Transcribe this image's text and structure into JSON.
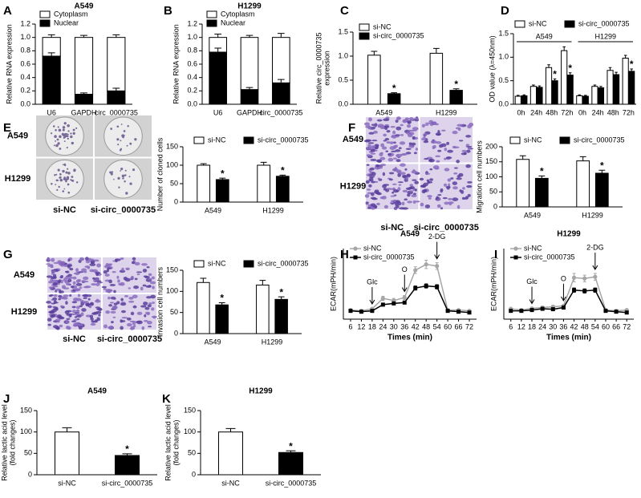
{
  "chart_data": [
    {
      "panel": "A",
      "type": "bar",
      "stacked": true,
      "title": "A549",
      "ylabel": "Relative RNA expression",
      "categories": [
        "U6",
        "GAPDH",
        "circ_0000735"
      ],
      "series": [
        {
          "name": "Cytoplasm",
          "color": "#ffffff",
          "values": [
            0.28,
            0.85,
            0.8
          ],
          "errors": [
            0.04,
            0.03,
            0.04
          ]
        },
        {
          "name": "Nuclear",
          "color": "#000000",
          "values": [
            0.72,
            0.15,
            0.2
          ],
          "errors": [
            0.05,
            0.02,
            0.04
          ]
        }
      ],
      "ylim": [
        0,
        1.2
      ],
      "yticks": [
        {
          "value": 0,
          "label": "0.0"
        },
        0.2,
        0.4,
        0.6,
        0.8,
        {
          "value": 1,
          "label": "1.0"
        },
        1.2
      ],
      "legend": "top-left"
    },
    {
      "panel": "B",
      "type": "bar",
      "stacked": true,
      "title": "H1299",
      "ylabel": "Relative RNA expression",
      "categories": [
        "U6",
        "GAPDH",
        "circ_0000735"
      ],
      "series": [
        {
          "name": "Cytoplasm",
          "color": "#ffffff",
          "values": [
            0.22,
            0.78,
            0.68
          ],
          "errors": [
            0.05,
            0.03,
            0.06
          ]
        },
        {
          "name": "Nuclear",
          "color": "#000000",
          "values": [
            0.78,
            0.22,
            0.32
          ],
          "errors": [
            0.06,
            0.03,
            0.05
          ]
        }
      ],
      "ylim": [
        0,
        1.2
      ],
      "yticks": [
        {
          "value": 0,
          "label": "0.0"
        },
        0.2,
        0.4,
        0.6,
        0.8,
        {
          "value": 1,
          "label": "1.0"
        },
        1.2
      ],
      "legend": "top-left"
    },
    {
      "panel": "C",
      "type": "bar",
      "ylabel": [
        "Relative circ_0000735",
        "expression"
      ],
      "categories": [
        "A549",
        "H1299"
      ],
      "series": [
        {
          "name": "si-NC",
          "color": "#ffffff",
          "values": [
            1.02,
            1.06
          ],
          "errors": [
            0.08,
            0.1
          ]
        },
        {
          "name": "si-circ_0000735",
          "color": "#000000",
          "values": [
            0.22,
            0.29
          ],
          "errors": [
            0.02,
            0.03
          ],
          "sig": [
            "*",
            "*"
          ]
        }
      ],
      "ylim": [
        0,
        1.5
      ],
      "yticks": [
        {
          "value": 0,
          "label": "0.0"
        },
        0.5,
        {
          "value": 1,
          "label": "1.0"
        },
        1.5
      ],
      "legend": "top-left"
    },
    {
      "panel": "D",
      "type": "bar",
      "ylabel": "OD value (λ=450nm)",
      "categories": [
        "0h",
        "24h",
        "48h",
        "72h",
        "0h",
        "24h",
        "48h",
        "72h"
      ],
      "group_labels": [
        "A549",
        "H1299"
      ],
      "series": [
        {
          "name": "si-NC",
          "color": "#ffffff",
          "values": [
            0.17,
            0.38,
            0.78,
            1.14,
            0.18,
            0.38,
            0.72,
            0.98
          ],
          "errors": [
            0.02,
            0.03,
            0.06,
            0.08,
            0.02,
            0.03,
            0.06,
            0.06
          ]
        },
        {
          "name": "si-circ_0000735",
          "color": "#000000",
          "values": [
            0.18,
            0.36,
            0.5,
            0.62,
            0.17,
            0.35,
            0.63,
            0.7
          ],
          "errors": [
            0.02,
            0.03,
            0.04,
            0.05,
            0.02,
            0.03,
            0.05,
            0.05
          ],
          "sig": [
            null,
            null,
            "*",
            "*",
            null,
            null,
            null,
            "*"
          ]
        }
      ],
      "ylim": [
        0,
        1.5
      ],
      "yticks": [
        {
          "value": 0,
          "label": "0.0"
        },
        0.5,
        {
          "value": 1,
          "label": "1.0"
        },
        1.5
      ],
      "legend": "top"
    },
    {
      "panel": "E",
      "type": "bar",
      "ylabel": "Number of cloned cells",
      "photo_rows": [
        "A549",
        "H1299"
      ],
      "photo_cols": [
        "si-NC",
        "si-circ_0000735"
      ],
      "categories": [
        "A549",
        "H1299"
      ],
      "series": [
        {
          "name": "si-NC",
          "color": "#ffffff",
          "values": [
            100,
            100
          ],
          "errors": [
            4,
            8
          ]
        },
        {
          "name": "si-circ_0000735",
          "color": "#000000",
          "values": [
            61,
            70
          ],
          "errors": [
            4,
            3
          ],
          "sig": [
            "*",
            "*"
          ]
        }
      ],
      "ylim": [
        0,
        150
      ],
      "yticks": [
        0,
        50,
        100,
        150
      ],
      "legend": "top"
    },
    {
      "panel": "F",
      "type": "bar",
      "ylabel": "Migration cell numbers",
      "photo_rows": [
        "A549",
        "H1299"
      ],
      "photo_cols": [
        "si-NC",
        "si-circ_0000735"
      ],
      "categories": [
        "A549",
        "H1299"
      ],
      "series": [
        {
          "name": "si-NC",
          "color": "#ffffff",
          "values": [
            158,
            153
          ],
          "errors": [
            12,
            14
          ]
        },
        {
          "name": "si-circ_0000735",
          "color": "#000000",
          "values": [
            95,
            112
          ],
          "errors": [
            8,
            10
          ],
          "sig": [
            "*",
            "*"
          ]
        }
      ],
      "ylim": [
        0,
        200
      ],
      "yticks": [
        0,
        50,
        100,
        150,
        200
      ],
      "legend": "top"
    },
    {
      "panel": "G",
      "type": "bar",
      "ylabel": "Invasion cell numbers",
      "photo_rows": [
        "A549",
        "H1299"
      ],
      "photo_cols": [
        "si-NC",
        "si-circ_0000735"
      ],
      "categories": [
        "A549",
        "H1299"
      ],
      "series": [
        {
          "name": "si-NC",
          "color": "#ffffff",
          "values": [
            121,
            115
          ],
          "errors": [
            10,
            11
          ]
        },
        {
          "name": "si-circ_0000735",
          "color": "#000000",
          "values": [
            68,
            81
          ],
          "errors": [
            5,
            6
          ],
          "sig": [
            "*",
            "*"
          ]
        }
      ],
      "ylim": [
        0,
        150
      ],
      "yticks": [
        0,
        50,
        100,
        150
      ],
      "legend": "top"
    },
    {
      "panel": "H",
      "type": "line",
      "title": "A549",
      "ylabel": "ECAR(mPH/min)",
      "xlabel": "Times (min)",
      "x": [
        6,
        12,
        18,
        24,
        30,
        36,
        42,
        48,
        54,
        60,
        66,
        72
      ],
      "series": [
        {
          "name": "si-NC",
          "color": "#a6a6a6",
          "marker": "circle",
          "values": [
            22,
            20,
            25,
            50,
            45,
            52,
            118,
            132,
            128,
            22,
            22,
            20
          ],
          "errors": [
            2,
            2,
            2,
            5,
            5,
            5,
            8,
            10,
            8,
            2,
            2,
            2
          ]
        },
        {
          "name": "si-circ_0000735",
          "color": "#000000",
          "marker": "square",
          "values": [
            20,
            18,
            20,
            35,
            38,
            40,
            75,
            80,
            78,
            20,
            18,
            16
          ],
          "errors": [
            2,
            2,
            2,
            3,
            3,
            3,
            5,
            5,
            5,
            2,
            2,
            2
          ]
        }
      ],
      "annotations": [
        {
          "text": "Glc",
          "x": 18
        },
        {
          "text": "O",
          "x": 36
        },
        {
          "text": "2-DG",
          "x": 54
        }
      ],
      "xlim": [
        2,
        76
      ],
      "xticks": [
        6,
        12,
        18,
        24,
        30,
        36,
        42,
        48,
        54,
        60,
        66,
        72
      ],
      "ylim": [
        0,
        170
      ],
      "legend": "top-left"
    },
    {
      "panel": "I",
      "type": "line",
      "title": "H1299",
      "ylabel": "ECAR(mPH/min)",
      "xlabel": "Times (min)",
      "x": [
        6,
        12,
        18,
        24,
        30,
        36,
        42,
        48,
        54,
        60,
        66,
        72
      ],
      "series": [
        {
          "name": "si-NC",
          "color": "#a6a6a6",
          "marker": "circle",
          "values": [
            25,
            22,
            26,
            28,
            30,
            32,
            100,
            98,
            102,
            22,
            20,
            22
          ],
          "errors": [
            2,
            2,
            2,
            3,
            3,
            3,
            10,
            8,
            8,
            2,
            2,
            2
          ]
        },
        {
          "name": "si-circ_0000735",
          "color": "#000000",
          "marker": "square",
          "values": [
            20,
            20,
            22,
            25,
            24,
            28,
            70,
            68,
            70,
            20,
            18,
            16
          ],
          "errors": [
            2,
            2,
            2,
            3,
            3,
            3,
            5,
            5,
            5,
            2,
            2,
            2
          ]
        }
      ],
      "annotations": [
        {
          "text": "Glc",
          "x": 18
        },
        {
          "text": "O",
          "x": 36
        },
        {
          "text": "2-DG",
          "x": 54
        }
      ],
      "xlim": [
        2,
        76
      ],
      "xticks": [
        6,
        12,
        18,
        24,
        30,
        36,
        42,
        48,
        54,
        60,
        66,
        72
      ],
      "ylim": [
        0,
        170
      ],
      "legend": "top-left"
    },
    {
      "panel": "J",
      "type": "bar",
      "title": "A549",
      "ylabel": [
        "Relative lactic acid level",
        "(fold changes)"
      ],
      "categories": [
        "si-NC",
        "si-circ_0000735"
      ],
      "values": [
        100,
        45
      ],
      "errors": [
        10,
        4
      ],
      "colors": [
        "#ffffff",
        "#000000"
      ],
      "sig": [
        null,
        "*"
      ],
      "ylim": [
        0,
        150
      ],
      "yticks": [
        0,
        50,
        100,
        150
      ]
    },
    {
      "panel": "K",
      "type": "bar",
      "title": "H1299",
      "ylabel": [
        "Relative lactic acid level",
        "(fold changes)"
      ],
      "categories": [
        "si-NC",
        "si-circ_0000735"
      ],
      "values": [
        100,
        52
      ],
      "errors": [
        8,
        4
      ],
      "colors": [
        "#ffffff",
        "#000000"
      ],
      "sig": [
        null,
        "*"
      ],
      "ylim": [
        0,
        150
      ],
      "yticks": [
        0,
        50,
        100,
        150
      ]
    }
  ]
}
